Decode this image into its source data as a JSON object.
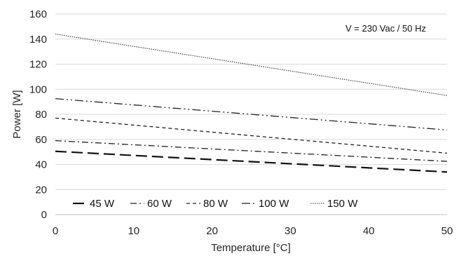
{
  "chart_data": {
    "type": "line",
    "xlabel": "Temperature [°C]",
    "ylabel": "Power [W]",
    "xlim": [
      0,
      50
    ],
    "ylim": [
      0,
      160
    ],
    "x_ticks": [
      "0",
      "10",
      "20",
      "30",
      "40",
      "50"
    ],
    "y_ticks": [
      "0",
      "20",
      "40",
      "60",
      "80",
      "100",
      "120",
      "140",
      "160"
    ],
    "grid": "horizontal",
    "legend_position": "bottom-left",
    "annotation": "V = 230 Vac  / 50 Hz",
    "x": [
      0,
      50
    ],
    "series": [
      {
        "name": "45 W",
        "values": [
          50.5,
          34
        ],
        "style": "long-dash",
        "color": "#111111"
      },
      {
        "name": "60 W",
        "values": [
          59,
          42.5
        ],
        "style": "dash-dot",
        "color": "#222222"
      },
      {
        "name": "80 W",
        "values": [
          77,
          49
        ],
        "style": "short-dash",
        "color": "#222222"
      },
      {
        "name": "100 W",
        "values": [
          92.5,
          67.5
        ],
        "style": "dash-dot-dot",
        "color": "#222222"
      },
      {
        "name": "150 W",
        "values": [
          144,
          95
        ],
        "style": "dotted",
        "color": "#333333"
      }
    ]
  }
}
